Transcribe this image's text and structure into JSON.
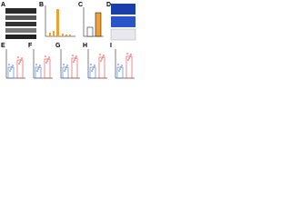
{
  "panels": {
    "a": "A",
    "b": "B",
    "c": "C",
    "d": "D",
    "e": "E",
    "f": "F",
    "g": "G",
    "h": "H",
    "i": "I"
  }
}
